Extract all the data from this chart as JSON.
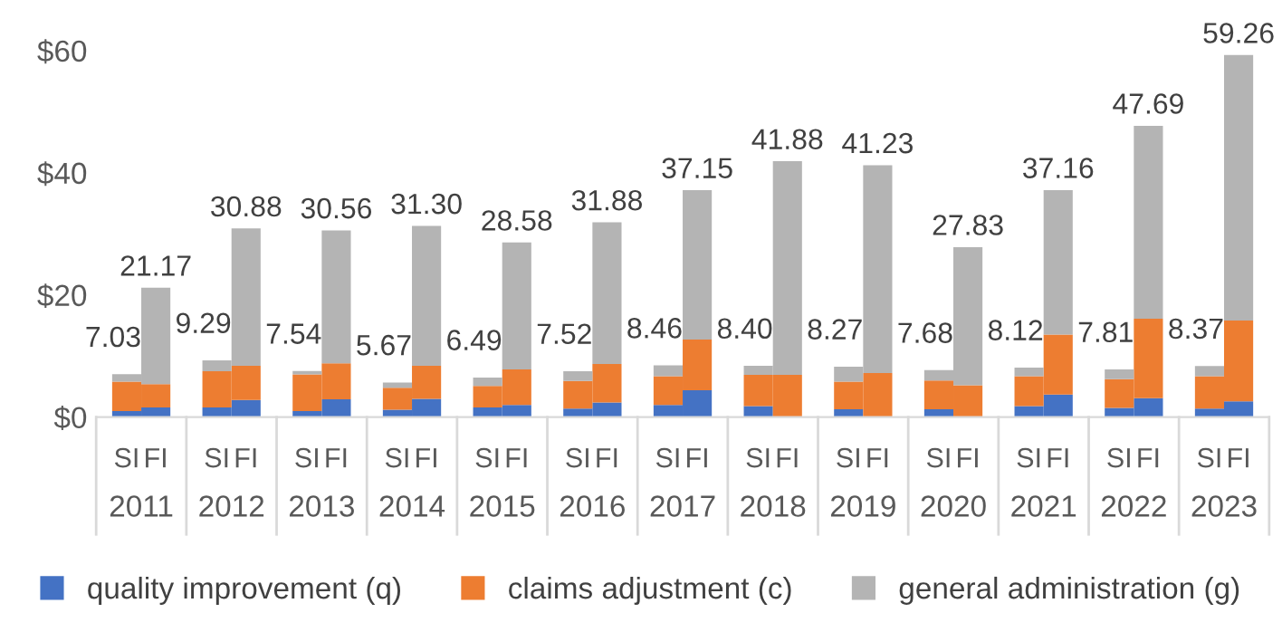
{
  "chart_data": {
    "type": "bar",
    "stacked": true,
    "categories": [
      "SI",
      "FI",
      "SI",
      "FI",
      "SI",
      "FI",
      "SI",
      "FI",
      "SI",
      "FI",
      "SI",
      "FI",
      "SI",
      "FI",
      "SI",
      "FI",
      "SI",
      "FI",
      "SI",
      "FI",
      "SI",
      "FI",
      "SI",
      "FI",
      "SI",
      "FI"
    ],
    "series": [
      {
        "name": "quality improvement (q)",
        "color": "#4472c4",
        "values": [
          1.0,
          1.6,
          1.6,
          2.8,
          1.0,
          2.9,
          1.2,
          3.0,
          1.6,
          2.0,
          1.4,
          2.4,
          2.0,
          4.4,
          1.8,
          0,
          1.3,
          0,
          1.3,
          0,
          1.8,
          3.7,
          1.5,
          3.1,
          1.4,
          2.6
        ]
      },
      {
        "name": "claims adjustment (c)",
        "color": "#ed7d31",
        "values": [
          4.8,
          3.8,
          5.9,
          5.6,
          6.0,
          5.9,
          3.6,
          5.4,
          3.5,
          5.8,
          4.5,
          6.3,
          4.7,
          8.3,
          5.1,
          6.9,
          4.5,
          7.2,
          4.7,
          5.2,
          4.9,
          9.8,
          4.7,
          13.0,
          5.3,
          13.2
        ]
      },
      {
        "name": "general administration (g)",
        "color": "#b4b4b4",
        "values": [
          1.23,
          15.77,
          1.79,
          22.48,
          0.54,
          21.76,
          0.87,
          22.9,
          1.39,
          20.78,
          1.62,
          23.18,
          1.76,
          24.45,
          1.5,
          34.98,
          2.47,
          34.03,
          1.68,
          22.63,
          1.42,
          23.66,
          1.61,
          31.59,
          1.67,
          43.46
        ]
      }
    ],
    "totals": [
      "7.03",
      "21.17",
      "9.29",
      "30.88",
      "7.54",
      "30.56",
      "5.67",
      "31.30",
      "6.49",
      "28.58",
      "7.52",
      "31.88",
      "8.46",
      "37.15",
      "8.40",
      "41.88",
      "8.27",
      "41.23",
      "7.68",
      "27.83",
      "8.12",
      "37.16",
      "7.81",
      "47.69",
      "8.37",
      "59.26"
    ],
    "annotations": [
      "2011",
      "2012",
      "2013",
      "2014",
      "2015",
      "2016",
      "2017",
      "2018",
      "2019",
      "2020",
      "2021",
      "2022",
      "2023"
    ],
    "ylim": [
      0,
      60
    ],
    "yticks": [
      {
        "value": 0,
        "label": "$0"
      },
      {
        "value": 20,
        "label": "$20"
      },
      {
        "value": 40,
        "label": "$40"
      },
      {
        "value": 60,
        "label": "$60"
      }
    ],
    "grid": false,
    "legend": "bottom"
  }
}
